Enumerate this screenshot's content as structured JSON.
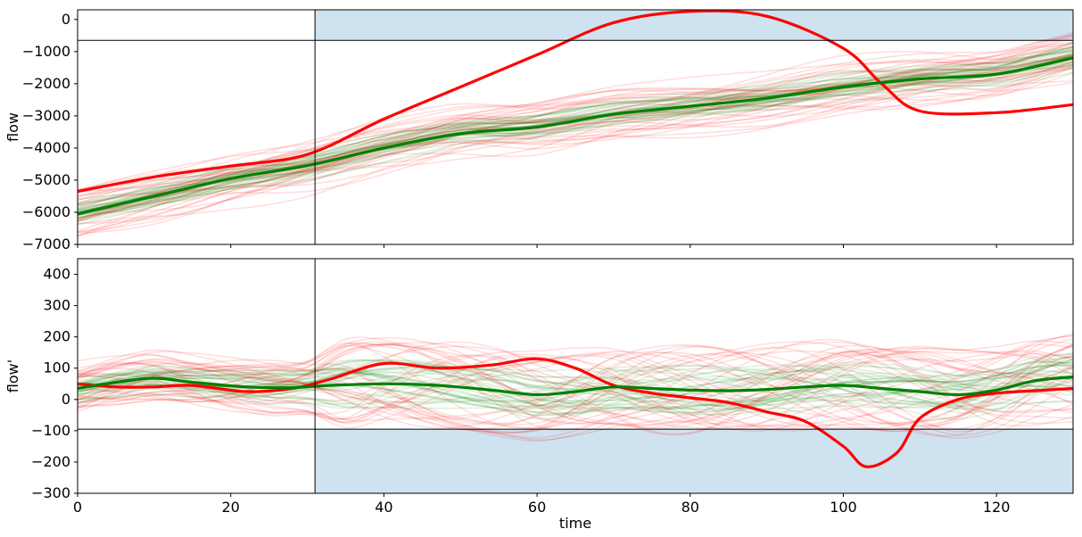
{
  "chart_data": [
    {
      "type": "line",
      "ylabel": "flow",
      "xlabel": "",
      "xlim": [
        0,
        130
      ],
      "ylim": [
        -7000,
        300
      ],
      "yticks": [
        0,
        -1000,
        -2000,
        -3000,
        -4000,
        -5000,
        -6000,
        -7000
      ],
      "xticks": [
        0,
        20,
        40,
        60,
        80,
        100,
        120
      ],
      "show_xtick_labels": false,
      "vertical_marker_x": 31,
      "horizontal_marker_y": -650,
      "shaded_region": {
        "x": [
          31,
          130
        ],
        "y": [
          -650,
          300
        ],
        "color": "#cfe2ef"
      },
      "series": [
        {
          "color": "#ff0000",
          "x": [
            0,
            10,
            20,
            30,
            40,
            50,
            60,
            70,
            80,
            90,
            100,
            105,
            110,
            120,
            130
          ],
          "y": [
            -5350,
            -4900,
            -4560,
            -4200,
            -3100,
            -2100,
            -1100,
            -100,
            250,
            100,
            -900,
            -2000,
            -2850,
            -2900,
            -2650
          ]
        },
        {
          "color": "#008000",
          "x": [
            0,
            10,
            20,
            30,
            40,
            50,
            60,
            70,
            80,
            90,
            100,
            110,
            120,
            130
          ],
          "y": [
            -6050,
            -5500,
            -4950,
            -4550,
            -4000,
            -3550,
            -3350,
            -2950,
            -2700,
            -2450,
            -2100,
            -1850,
            -1700,
            -1200
          ]
        }
      ],
      "background_colors": [
        "#ff0000",
        "#008000"
      ]
    },
    {
      "type": "line",
      "ylabel": "flow'",
      "xlabel": "time",
      "xlim": [
        0,
        130
      ],
      "ylim": [
        -300,
        450
      ],
      "yticks": [
        400,
        300,
        200,
        100,
        0,
        -100,
        -200,
        -300
      ],
      "xticks": [
        0,
        20,
        40,
        60,
        80,
        100,
        120
      ],
      "show_xtick_labels": true,
      "vertical_marker_x": 31,
      "horizontal_marker_y": -95,
      "shaded_region": {
        "x": [
          31,
          130
        ],
        "y": [
          -300,
          -95
        ],
        "color": "#cfe2ef"
      },
      "series": [
        {
          "color": "#ff0000",
          "x": [
            0,
            5,
            10,
            15,
            22,
            28,
            33,
            40,
            47,
            54,
            60,
            65,
            70,
            75,
            80,
            85,
            90,
            95,
            100,
            103,
            107,
            110,
            115,
            120,
            125,
            130
          ],
          "y": [
            50,
            40,
            40,
            45,
            25,
            35,
            65,
            115,
            100,
            110,
            130,
            100,
            45,
            20,
            5,
            -10,
            -40,
            -70,
            -150,
            -215,
            -170,
            -60,
            0,
            20,
            28,
            35
          ]
        },
        {
          "color": "#008000",
          "x": [
            0,
            5,
            10,
            15,
            22,
            28,
            33,
            40,
            47,
            54,
            60,
            65,
            70,
            75,
            80,
            85,
            90,
            95,
            100,
            105,
            110,
            115,
            120,
            125,
            130
          ],
          "y": [
            35,
            55,
            68,
            55,
            40,
            38,
            45,
            50,
            45,
            30,
            15,
            25,
            40,
            35,
            30,
            28,
            32,
            40,
            45,
            35,
            25,
            15,
            30,
            60,
            72
          ]
        }
      ],
      "background_colors": [
        "#ff0000",
        "#008000"
      ]
    }
  ]
}
